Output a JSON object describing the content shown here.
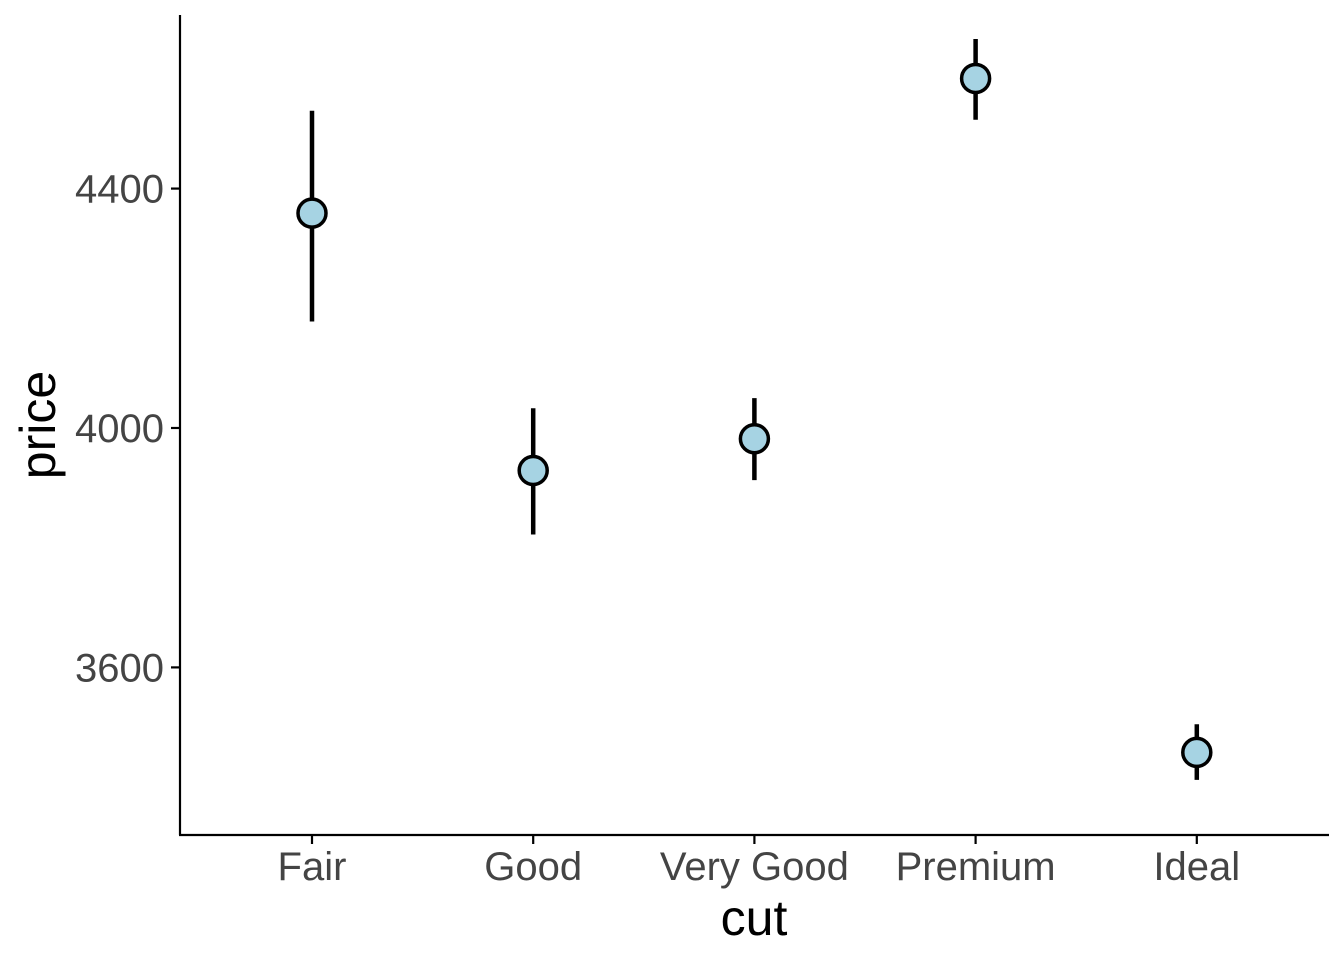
{
  "chart_data": {
    "type": "scatter",
    "xlabel": "cut",
    "ylabel": "price",
    "categories": [
      "Fair",
      "Good",
      "Very Good",
      "Premium",
      "Ideal"
    ],
    "series": [
      {
        "values": [
          4359,
          3929,
          3982,
          4584,
          3458
        ],
        "lower": [
          4178,
          3822,
          3913,
          4515,
          3412
        ],
        "upper": [
          4530,
          4033,
          4050,
          4650,
          3505
        ]
      }
    ],
    "y_ticks": [
      3600,
      4000,
      4400
    ],
    "y_tick_labels": [
      "3600",
      "4000",
      "4400"
    ],
    "ylim": [
      3320,
      4690
    ],
    "grid": false,
    "legend": "none",
    "colors": {
      "point_fill": "#a6d3e3",
      "point_stroke": "#000000",
      "errorbar": "#000000",
      "axis": "#000000",
      "tick_label": "#444444"
    }
  }
}
